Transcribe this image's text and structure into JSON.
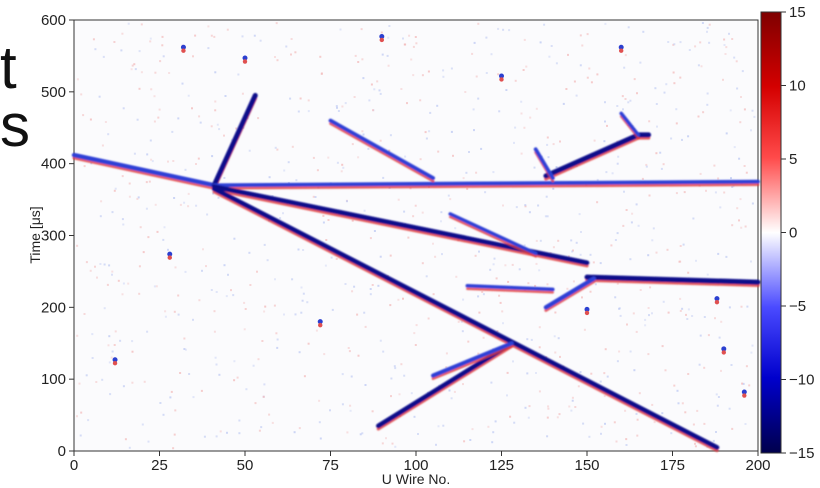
{
  "cutoff_text": [
    "t",
    "s"
  ],
  "chart_data": {
    "type": "heatmap",
    "title": "",
    "xlabel": "U Wire No.",
    "ylabel": "Time [μs]",
    "xlim": [
      0,
      200
    ],
    "ylim": [
      0,
      600
    ],
    "xticks": [
      0,
      25,
      50,
      75,
      100,
      125,
      150,
      175,
      200
    ],
    "yticks": [
      0,
      100,
      200,
      300,
      400,
      500,
      600
    ],
    "colorbar": {
      "range": [
        -15,
        15
      ],
      "ticks": [
        15,
        10,
        5,
        0,
        -5,
        -10,
        -15
      ],
      "tick_labels": [
        "15",
        "10",
        "5",
        "0",
        "−5",
        "−10",
        "−15"
      ],
      "colormap": "seismic",
      "colors": {
        "high": "#7f0000",
        "mid": "#ffffff",
        "low": "#00004c"
      }
    },
    "tracks": [
      {
        "from": [
          0,
          412
        ],
        "to": [
          41,
          370
        ],
        "strength": 0.8
      },
      {
        "from": [
          41,
          370
        ],
        "to": [
          53,
          495
        ],
        "strength": 1.0
      },
      {
        "from": [
          41,
          370
        ],
        "to": [
          200,
          375
        ],
        "strength": 0.6
      },
      {
        "from": [
          41,
          368
        ],
        "to": [
          150,
          262
        ],
        "strength": 0.9
      },
      {
        "from": [
          41,
          365
        ],
        "to": [
          188,
          5
        ],
        "strength": 0.9
      },
      {
        "from": [
          89,
          35
        ],
        "to": [
          128,
          150
        ],
        "strength": 0.9
      },
      {
        "from": [
          105,
          105
        ],
        "to": [
          128,
          150
        ],
        "strength": 0.7
      },
      {
        "from": [
          138,
          383
        ],
        "to": [
          165,
          440
        ],
        "strength": 1.0
      },
      {
        "from": [
          165,
          440
        ],
        "to": [
          168,
          440
        ],
        "strength": 1.0
      },
      {
        "from": [
          150,
          242
        ],
        "to": [
          200,
          235
        ],
        "strength": 1.0
      },
      {
        "from": [
          138,
          200
        ],
        "to": [
          152,
          240
        ],
        "strength": 0.8
      },
      {
        "from": [
          75,
          460
        ],
        "to": [
          105,
          380
        ],
        "strength": 0.6
      },
      {
        "from": [
          135,
          420
        ],
        "to": [
          140,
          380
        ],
        "strength": 0.6
      },
      {
        "from": [
          160,
          470
        ],
        "to": [
          165,
          440
        ],
        "strength": 0.5
      },
      {
        "from": [
          110,
          330
        ],
        "to": [
          135,
          275
        ],
        "strength": 0.5
      },
      {
        "from": [
          115,
          230
        ],
        "to": [
          140,
          225
        ],
        "strength": 0.5
      }
    ],
    "blobs": [
      {
        "x": 32,
        "y": 560
      },
      {
        "x": 50,
        "y": 545
      },
      {
        "x": 72,
        "y": 178
      },
      {
        "x": 12,
        "y": 125
      },
      {
        "x": 90,
        "y": 575
      },
      {
        "x": 150,
        "y": 195
      },
      {
        "x": 188,
        "y": 210
      },
      {
        "x": 190,
        "y": 140
      },
      {
        "x": 196,
        "y": 80
      },
      {
        "x": 28,
        "y": 272
      },
      {
        "x": 160,
        "y": 560
      },
      {
        "x": 125,
        "y": 520
      }
    ]
  }
}
